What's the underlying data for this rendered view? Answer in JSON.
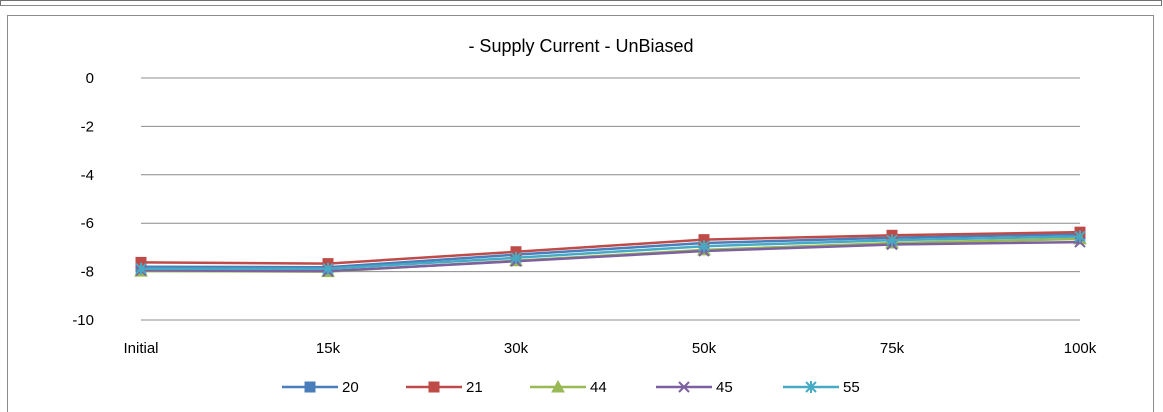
{
  "chart_data": {
    "type": "line",
    "title": "- Supply Current - UnBiased",
    "xlabel": "",
    "ylabel": "",
    "categories": [
      "Initial",
      "15k",
      "30k",
      "50k",
      "75k",
      "100k"
    ],
    "ylim": [
      -10,
      0
    ],
    "yticks": [
      0,
      -2,
      -4,
      -6,
      -8,
      -10
    ],
    "grid": true,
    "legend_position": "bottom",
    "series": [
      {
        "name": "20",
        "color": "#4a7ebb",
        "marker": "square",
        "values": [
          -7.8,
          -7.82,
          -7.3,
          -6.82,
          -6.6,
          -6.45
        ]
      },
      {
        "name": "21",
        "color": "#be4b48",
        "marker": "square",
        "values": [
          -7.62,
          -7.67,
          -7.18,
          -6.68,
          -6.5,
          -6.37
        ]
      },
      {
        "name": "44",
        "color": "#98b954",
        "marker": "triangle",
        "values": [
          -7.98,
          -8.0,
          -7.55,
          -7.1,
          -6.82,
          -6.65
        ]
      },
      {
        "name": "45",
        "color": "#7d60a0",
        "marker": "x",
        "values": [
          -7.95,
          -7.98,
          -7.57,
          -7.15,
          -6.88,
          -6.78
        ]
      },
      {
        "name": "55",
        "color": "#46aac5",
        "marker": "star",
        "values": [
          -7.88,
          -7.88,
          -7.43,
          -6.95,
          -6.7,
          -6.55
        ]
      }
    ]
  }
}
